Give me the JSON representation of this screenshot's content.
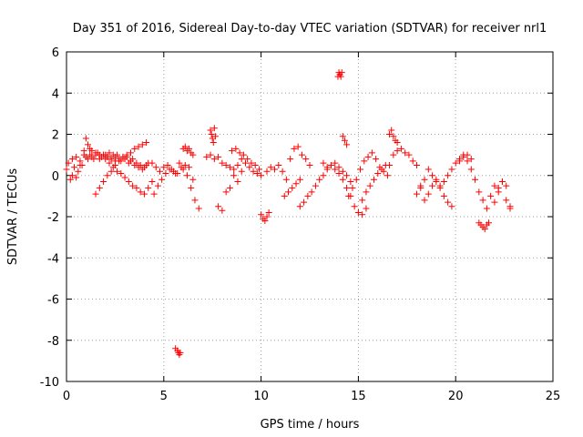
{
  "chart_data": {
    "type": "scatter",
    "title": "Day 351 of 2016, Sidereal Day-to-day VTEC variation (SDTVAR) for receiver nrl1",
    "xlabel": "GPS time / hours",
    "ylabel": "SDTVAR / TECUs",
    "xlim": [
      0,
      25
    ],
    "ylim": [
      -10,
      6
    ],
    "xticks": [
      0,
      5,
      10,
      15,
      20,
      25
    ],
    "yticks": [
      -10,
      -8,
      -6,
      -4,
      -2,
      0,
      2,
      4,
      6
    ],
    "grid": true,
    "marker": "+",
    "color": "#ff0000",
    "series": [
      {
        "name": "SDTVAR",
        "x": [
          0.0,
          0.1,
          0.2,
          0.3,
          0.4,
          0.5,
          0.6,
          0.7,
          0.8,
          0.9,
          1.0,
          1.1,
          1.2,
          1.3,
          1.4,
          1.5,
          1.6,
          1.7,
          1.8,
          1.9,
          2.0,
          2.1,
          2.2,
          2.3,
          2.4,
          2.5,
          2.6,
          2.7,
          2.8,
          2.9,
          3.0,
          3.1,
          3.2,
          3.3,
          3.4,
          3.5,
          3.6,
          3.7,
          3.8,
          3.9,
          4.0,
          4.1,
          4.2,
          0.3,
          0.5,
          0.7,
          0.9,
          1.0,
          1.1,
          1.2,
          1.3,
          1.5,
          1.7,
          1.9,
          2.1,
          2.3,
          2.5,
          1.5,
          1.7,
          1.9,
          2.1,
          2.3,
          2.5,
          2.7,
          2.9,
          3.1,
          3.3,
          3.5,
          3.7,
          3.9,
          4.1,
          2.0,
          2.2,
          2.4,
          2.6,
          2.8,
          3.0,
          3.2,
          3.4,
          3.6,
          3.8,
          4.0,
          4.2,
          4.4,
          4.4,
          4.6,
          4.8,
          5.0,
          5.2,
          5.4,
          5.6,
          5.8,
          6.0,
          6.2,
          6.4,
          6.6,
          6.8,
          4.5,
          4.7,
          4.9,
          5.1,
          5.3,
          5.5,
          5.7,
          5.9,
          6.1,
          6.3,
          6.5,
          5.6,
          5.7,
          5.75,
          5.8,
          5.85,
          6.0,
          6.1,
          6.2,
          6.3,
          6.4,
          6.5,
          7.4,
          7.45,
          7.5,
          7.55,
          7.6,
          7.65,
          7.2,
          7.4,
          7.6,
          7.8,
          8.0,
          8.2,
          8.4,
          8.6,
          8.8,
          9.0,
          9.2,
          9.4,
          9.6,
          9.8,
          10.0,
          7.8,
          8.0,
          8.2,
          8.4,
          8.6,
          8.8,
          9.0,
          8.5,
          8.7,
          8.9,
          9.1,
          9.3,
          9.5,
          9.7,
          9.9,
          10.0,
          10.1,
          10.2,
          10.3,
          10.4,
          10.3,
          10.5,
          10.7,
          10.9,
          11.1,
          11.3,
          11.5,
          11.7,
          11.9,
          12.1,
          12.3,
          12.5,
          11.2,
          11.4,
          11.6,
          11.8,
          12.0,
          12.0,
          12.2,
          12.4,
          12.6,
          12.8,
          13.0,
          13.2,
          13.4,
          13.6,
          13.8,
          14.0,
          14.2,
          14.4,
          14.6,
          13.2,
          13.4,
          13.6,
          13.8,
          14.0,
          14.2,
          14.4,
          14.6,
          14.8,
          15.0,
          15.2,
          15.4,
          13.95,
          14.0,
          14.05,
          14.1,
          14.15,
          14.2,
          14.3,
          14.4,
          14.5,
          14.7,
          14.9,
          15.1,
          15.3,
          15.5,
          15.7,
          15.9,
          16.1,
          16.3,
          16.5,
          15.2,
          15.4,
          15.6,
          15.8,
          16.0,
          16.2,
          16.4,
          16.6,
          16.8,
          17.0,
          17.2,
          17.4,
          17.6,
          17.8,
          18.0,
          18.2,
          18.4,
          18.6,
          18.8,
          19.0,
          16.6,
          16.7,
          16.8,
          16.9,
          17.0,
          18.0,
          18.2,
          18.4,
          18.6,
          18.8,
          19.0,
          19.2,
          19.4,
          19.6,
          19.8,
          19.2,
          19.4,
          19.6,
          19.8,
          20.0,
          20.2,
          20.4,
          20.6,
          20.8,
          21.0,
          21.2,
          21.4,
          21.6,
          21.8,
          22.0,
          22.2,
          22.4,
          22.6,
          22.8,
          20.2,
          20.4,
          20.6,
          20.8,
          21.2,
          21.3,
          21.4,
          21.5,
          21.6,
          21.7,
          22.0,
          22.2,
          22.4,
          22.6,
          22.8
        ],
        "y": [
          0.3,
          0.6,
          -0.2,
          0.8,
          0.4,
          0.9,
          0.2,
          0.7,
          0.5,
          1.0,
          0.9,
          0.8,
          1.0,
          0.9,
          0.8,
          1.0,
          1.1,
          0.8,
          0.9,
          1.0,
          1.0,
          0.9,
          1.1,
          0.8,
          1.0,
          0.9,
          1.0,
          0.8,
          0.7,
          0.9,
          0.8,
          0.9,
          0.6,
          0.7,
          0.8,
          0.5,
          0.6,
          0.4,
          0.5,
          0.3,
          0.4,
          0.5,
          0.6,
          0.0,
          -0.1,
          0.5,
          1.2,
          1.8,
          1.5,
          1.3,
          1.2,
          1.1,
          1.0,
          1.0,
          0.9,
          0.8,
          0.7,
          -0.9,
          -0.6,
          -0.3,
          0.0,
          0.2,
          0.5,
          0.7,
          0.9,
          1.0,
          1.1,
          1.3,
          1.4,
          1.5,
          1.6,
          0.8,
          0.6,
          0.4,
          0.2,
          0.1,
          -0.1,
          -0.3,
          -0.5,
          -0.6,
          -0.8,
          -0.9,
          -0.6,
          -0.3,
          0.6,
          0.4,
          0.2,
          0.4,
          0.5,
          0.3,
          0.1,
          0.6,
          0.3,
          0.0,
          -0.6,
          -1.2,
          -1.6,
          -0.9,
          -0.5,
          -0.2,
          0.1,
          0.3,
          0.2,
          0.1,
          0.4,
          0.5,
          0.4,
          -0.2,
          -8.4,
          -8.5,
          -8.6,
          -8.7,
          -8.6,
          1.3,
          1.4,
          1.2,
          1.3,
          1.1,
          1.0,
          2.2,
          2.0,
          1.8,
          1.6,
          2.3,
          1.9,
          0.9,
          1.0,
          0.8,
          0.9,
          0.6,
          0.5,
          0.4,
          0.3,
          0.5,
          0.8,
          0.6,
          0.4,
          0.2,
          0.1,
          0.0,
          -1.5,
          -1.7,
          -0.8,
          -0.6,
          0.0,
          -0.3,
          0.2,
          1.2,
          1.3,
          1.1,
          1.0,
          0.8,
          0.6,
          0.5,
          0.3,
          -1.9,
          -2.1,
          -2.2,
          -2.0,
          -1.8,
          0.2,
          0.4,
          0.3,
          0.5,
          0.2,
          -0.2,
          0.8,
          1.3,
          1.4,
          1.0,
          0.8,
          0.5,
          -1.0,
          -0.8,
          -0.6,
          -0.4,
          -0.2,
          -1.5,
          -1.3,
          -1.0,
          -0.8,
          -0.5,
          -0.2,
          0.0,
          0.3,
          0.5,
          0.6,
          0.4,
          0.2,
          0.0,
          -0.3,
          0.6,
          0.4,
          0.5,
          0.3,
          0.1,
          -0.2,
          -0.6,
          -1.0,
          -1.5,
          -1.8,
          -1.9,
          -1.6,
          4.8,
          5.0,
          4.9,
          4.8,
          5.0,
          1.9,
          1.7,
          1.5,
          -1.0,
          -0.6,
          -0.2,
          0.3,
          0.7,
          0.9,
          1.1,
          0.8,
          0.4,
          0.2,
          0.0,
          -1.2,
          -0.8,
          -0.5,
          -0.2,
          0.1,
          0.3,
          0.5,
          0.5,
          1.0,
          1.2,
          1.3,
          1.1,
          1.0,
          0.7,
          0.5,
          -0.6,
          -1.2,
          -0.9,
          -0.5,
          -0.2,
          2.0,
          2.2,
          1.9,
          1.7,
          1.6,
          -0.9,
          -0.5,
          -0.2,
          0.3,
          0.0,
          -0.3,
          -0.6,
          -1.0,
          -1.3,
          -1.5,
          -0.5,
          -0.3,
          0.0,
          0.3,
          0.6,
          0.8,
          1.0,
          0.7,
          0.3,
          -0.2,
          -0.8,
          -1.2,
          -1.6,
          -1.0,
          -0.5,
          -0.8,
          -0.3,
          -1.2,
          -1.6,
          0.7,
          0.9,
          1.0,
          0.8,
          -2.3,
          -2.4,
          -2.5,
          -2.6,
          -2.4,
          -2.3,
          -1.3,
          -0.6,
          -0.3,
          -0.5,
          -1.5
        ]
      }
    ]
  }
}
